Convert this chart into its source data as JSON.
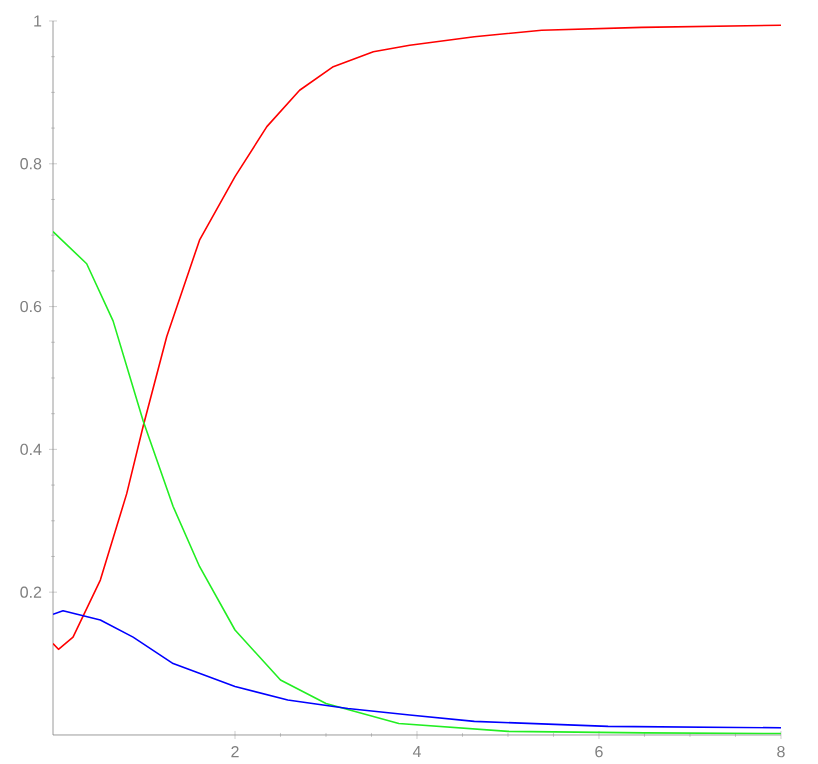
{
  "chart_data": {
    "type": "line",
    "xlim": [
      0,
      8
    ],
    "ylim": [
      0,
      1
    ],
    "xticks": [
      2,
      4,
      6,
      8
    ],
    "yticks": [
      0.2,
      0.4,
      0.6,
      0.8,
      1
    ],
    "grid": false,
    "series": [
      {
        "color": "#ff0000",
        "x": [
          0,
          0.06,
          0.22,
          0.52,
          0.81,
          0.99,
          1.25,
          1.61,
          2.0,
          2.35,
          2.71,
          3.08,
          3.52,
          3.92,
          4.63,
          5.37,
          6.47,
          8.0
        ],
        "values": [
          0.128,
          0.12,
          0.137,
          0.217,
          0.338,
          0.432,
          0.558,
          0.693,
          0.782,
          0.852,
          0.903,
          0.936,
          0.957,
          0.966,
          0.978,
          0.987,
          0.991,
          0.994
        ]
      },
      {
        "color": "#22ee22",
        "x": [
          0,
          0.37,
          0.66,
          0.99,
          1.32,
          1.61,
          2.0,
          2.5,
          3.0,
          3.8,
          5.0,
          6.5,
          8.0
        ],
        "values": [
          0.705,
          0.66,
          0.58,
          0.44,
          0.32,
          0.236,
          0.147,
          0.077,
          0.044,
          0.016,
          0.005,
          0.003,
          0.002
        ]
      },
      {
        "color": "#0000ff",
        "x": [
          0,
          0.11,
          0.52,
          0.88,
          1.32,
          2.0,
          2.58,
          3.24,
          3.92,
          4.63,
          6.1,
          8.0
        ],
        "values": [
          0.169,
          0.174,
          0.161,
          0.137,
          0.1,
          0.068,
          0.049,
          0.037,
          0.028,
          0.019,
          0.012,
          0.01
        ]
      }
    ]
  }
}
